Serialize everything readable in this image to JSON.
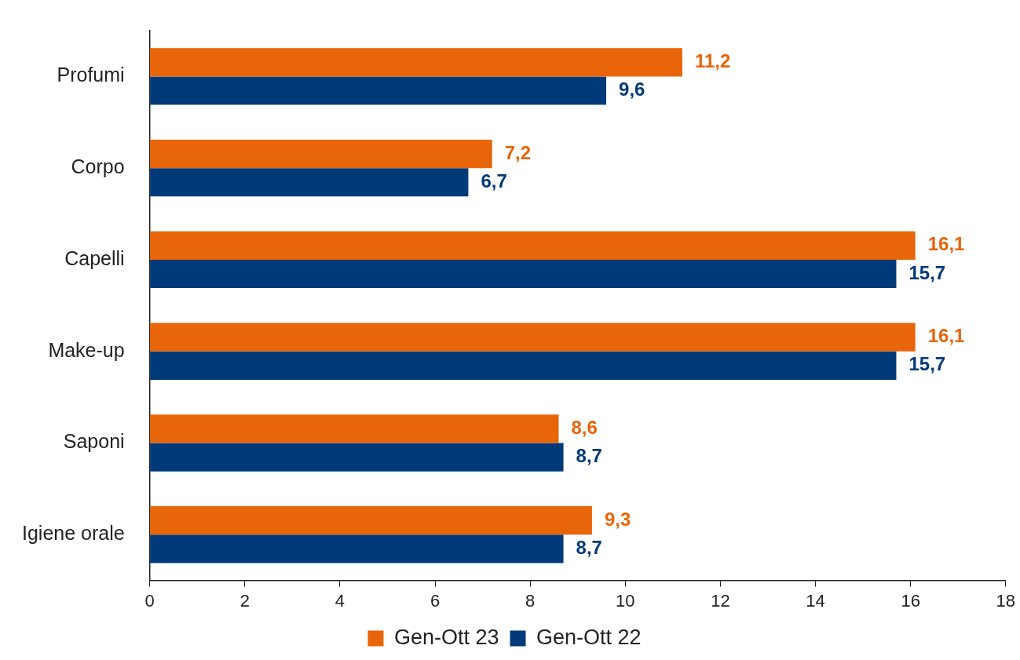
{
  "chart_data": {
    "type": "bar",
    "orientation": "horizontal",
    "categories": [
      "Profumi",
      "Corpo",
      "Capelli",
      "Make-up",
      "Saponi",
      "Igiene orale"
    ],
    "series": [
      {
        "name": "Gen-Ott 23",
        "color": "#e8650a",
        "values": [
          11.2,
          7.2,
          16.1,
          16.1,
          8.6,
          9.3
        ],
        "value_labels": [
          "11,2",
          "7,2",
          "16,1",
          "16,1",
          "8,6",
          "9,3"
        ]
      },
      {
        "name": "Gen-Ott 22",
        "color": "#003a78",
        "values": [
          9.6,
          6.7,
          15.7,
          15.7,
          8.7,
          8.7
        ],
        "value_labels": [
          "9,6",
          "6,7",
          "15,7",
          "15,7",
          "8,7",
          "8,7"
        ]
      }
    ],
    "xlim": [
      0,
      18
    ],
    "xticks": [
      0,
      2,
      4,
      6,
      8,
      10,
      12,
      14,
      16,
      18
    ],
    "grid": false,
    "legend": "bottom"
  }
}
